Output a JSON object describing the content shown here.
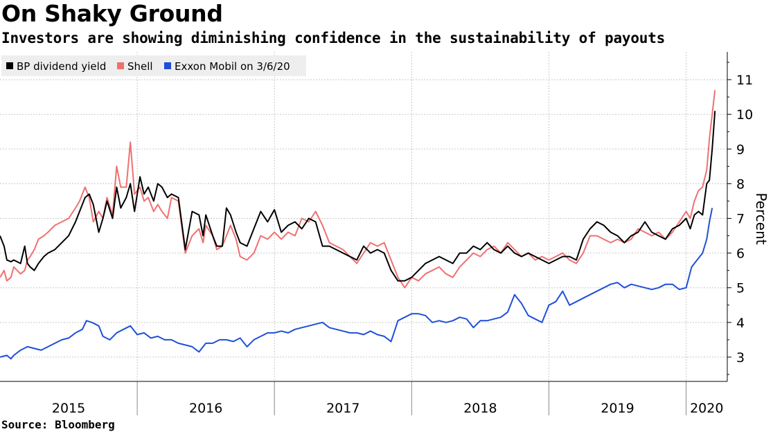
{
  "title": "On Shaky Ground",
  "subtitle": "Investors are showing diminishing confidence in the sustainability of payouts",
  "source": "Source: Bloomberg",
  "chart_data": {
    "type": "line",
    "title": "On Shaky Ground",
    "subtitle": "Investors are showing diminishing confidence in the sustainability of payouts",
    "ylabel": "Percent",
    "xlabel": "",
    "ylim": [
      2.3,
      11.8
    ],
    "xlim": [
      2015.0,
      2020.3
    ],
    "yticks": [
      3,
      4,
      5,
      6,
      7,
      8,
      9,
      10,
      11
    ],
    "year_labels": [
      "2015",
      "2016",
      "2017",
      "2018",
      "2019",
      "2020"
    ],
    "year_boundaries": [
      2016.0,
      2017.0,
      2018.0,
      2019.0,
      2020.0
    ],
    "legend_position": "top-left",
    "grid": true,
    "series": [
      {
        "name": "BP dividend yield",
        "color": "#000000",
        "x": [
          2015.0,
          2015.03,
          2015.05,
          2015.08,
          2015.1,
          2015.15,
          2015.18,
          2015.2,
          2015.22,
          2015.25,
          2015.28,
          2015.32,
          2015.35,
          2015.4,
          2015.45,
          2015.5,
          2015.55,
          2015.58,
          2015.62,
          2015.65,
          2015.68,
          2015.72,
          2015.75,
          2015.78,
          2015.82,
          2015.85,
          2015.88,
          2015.92,
          2015.95,
          2015.98,
          2016.02,
          2016.05,
          2016.08,
          2016.12,
          2016.15,
          2016.18,
          2016.22,
          2016.25,
          2016.3,
          2016.35,
          2016.4,
          2016.45,
          2016.48,
          2016.5,
          2016.55,
          2016.58,
          2016.62,
          2016.65,
          2016.68,
          2016.72,
          2016.75,
          2016.8,
          2016.85,
          2016.9,
          2016.95,
          2017.0,
          2017.05,
          2017.1,
          2017.15,
          2017.2,
          2017.25,
          2017.3,
          2017.35,
          2017.4,
          2017.45,
          2017.5,
          2017.55,
          2017.6,
          2017.65,
          2017.7,
          2017.75,
          2017.8,
          2017.85,
          2017.9,
          2017.95,
          2018.0,
          2018.05,
          2018.1,
          2018.15,
          2018.2,
          2018.25,
          2018.3,
          2018.35,
          2018.4,
          2018.45,
          2018.5,
          2018.55,
          2018.6,
          2018.65,
          2018.7,
          2018.75,
          2018.8,
          2018.85,
          2018.9,
          2018.95,
          2019.0,
          2019.05,
          2019.1,
          2019.15,
          2019.2,
          2019.25,
          2019.3,
          2019.35,
          2019.4,
          2019.45,
          2019.5,
          2019.55,
          2019.6,
          2019.65,
          2019.7,
          2019.75,
          2019.8,
          2019.85,
          2019.9,
          2019.95,
          2020.0,
          2020.03,
          2020.06,
          2020.09,
          2020.12,
          2020.15,
          2020.17,
          2020.19,
          2020.21
        ],
        "values": [
          6.5,
          6.2,
          5.8,
          5.75,
          5.8,
          5.7,
          6.2,
          5.7,
          5.6,
          5.5,
          5.7,
          5.9,
          6.0,
          6.1,
          6.3,
          6.5,
          6.9,
          7.2,
          7.6,
          7.7,
          7.4,
          6.6,
          7.0,
          7.5,
          7.0,
          7.9,
          7.3,
          7.6,
          8.0,
          7.2,
          8.2,
          7.7,
          7.9,
          7.5,
          8.0,
          7.9,
          7.6,
          7.7,
          7.6,
          6.1,
          7.2,
          7.1,
          6.5,
          7.1,
          6.5,
          6.2,
          6.2,
          7.3,
          7.1,
          6.6,
          6.3,
          6.2,
          6.7,
          7.2,
          6.9,
          7.25,
          6.6,
          6.8,
          6.9,
          6.7,
          7.0,
          6.9,
          6.2,
          6.2,
          6.1,
          6.0,
          5.9,
          5.8,
          6.2,
          6.0,
          6.1,
          6.0,
          5.5,
          5.2,
          5.2,
          5.3,
          5.5,
          5.7,
          5.8,
          5.9,
          5.8,
          5.7,
          6.0,
          6.0,
          6.2,
          6.1,
          6.3,
          6.1,
          6.0,
          6.2,
          6.0,
          5.9,
          6.0,
          5.9,
          5.8,
          5.7,
          5.8,
          5.9,
          5.9,
          5.8,
          6.4,
          6.7,
          6.9,
          6.8,
          6.6,
          6.5,
          6.3,
          6.5,
          6.6,
          6.9,
          6.6,
          6.5,
          6.4,
          6.7,
          6.8,
          7.0,
          6.7,
          7.1,
          7.2,
          7.1,
          8.0,
          8.1,
          9.0,
          10.1
        ]
      },
      {
        "name": "Shell",
        "color": "#f07070",
        "x": [
          2015.0,
          2015.03,
          2015.05,
          2015.08,
          2015.1,
          2015.15,
          2015.18,
          2015.2,
          2015.22,
          2015.25,
          2015.28,
          2015.32,
          2015.35,
          2015.4,
          2015.45,
          2015.5,
          2015.55,
          2015.58,
          2015.62,
          2015.65,
          2015.68,
          2015.72,
          2015.75,
          2015.78,
          2015.82,
          2015.85,
          2015.88,
          2015.92,
          2015.95,
          2015.98,
          2016.02,
          2016.05,
          2016.08,
          2016.12,
          2016.15,
          2016.18,
          2016.22,
          2016.25,
          2016.3,
          2016.35,
          2016.4,
          2016.45,
          2016.48,
          2016.5,
          2016.55,
          2016.58,
          2016.62,
          2016.65,
          2016.68,
          2016.72,
          2016.75,
          2016.8,
          2016.85,
          2016.9,
          2016.95,
          2017.0,
          2017.05,
          2017.1,
          2017.15,
          2017.2,
          2017.25,
          2017.3,
          2017.35,
          2017.4,
          2017.45,
          2017.5,
          2017.55,
          2017.6,
          2017.65,
          2017.7,
          2017.75,
          2017.8,
          2017.85,
          2017.9,
          2017.95,
          2018.0,
          2018.05,
          2018.1,
          2018.15,
          2018.2,
          2018.25,
          2018.3,
          2018.35,
          2018.4,
          2018.45,
          2018.5,
          2018.55,
          2018.6,
          2018.65,
          2018.7,
          2018.75,
          2018.8,
          2018.85,
          2018.9,
          2018.95,
          2019.0,
          2019.05,
          2019.1,
          2019.15,
          2019.2,
          2019.25,
          2019.3,
          2019.35,
          2019.4,
          2019.45,
          2019.5,
          2019.55,
          2019.6,
          2019.65,
          2019.7,
          2019.75,
          2019.8,
          2019.85,
          2019.9,
          2019.95,
          2020.0,
          2020.03,
          2020.06,
          2020.09,
          2020.12,
          2020.15,
          2020.17,
          2020.19,
          2020.21
        ],
        "values": [
          5.3,
          5.5,
          5.2,
          5.3,
          5.6,
          5.4,
          5.5,
          5.8,
          5.9,
          6.1,
          6.4,
          6.5,
          6.6,
          6.8,
          6.9,
          7.0,
          7.3,
          7.5,
          7.9,
          7.6,
          6.9,
          7.2,
          7.0,
          7.6,
          7.1,
          8.5,
          7.9,
          7.9,
          9.2,
          7.7,
          7.9,
          7.5,
          7.6,
          7.2,
          7.4,
          7.2,
          7.0,
          7.6,
          7.5,
          6.0,
          6.5,
          6.7,
          6.3,
          6.8,
          6.5,
          6.1,
          6.2,
          6.5,
          6.8,
          6.4,
          5.9,
          5.8,
          6.0,
          6.5,
          6.4,
          6.6,
          6.4,
          6.6,
          6.5,
          7.0,
          6.9,
          7.2,
          6.8,
          6.3,
          6.2,
          6.1,
          5.9,
          5.7,
          6.0,
          6.3,
          6.2,
          6.3,
          5.8,
          5.3,
          5.0,
          5.3,
          5.2,
          5.4,
          5.5,
          5.6,
          5.4,
          5.3,
          5.6,
          5.8,
          6.0,
          5.9,
          6.1,
          6.2,
          6.0,
          6.3,
          6.1,
          5.9,
          6.0,
          5.8,
          5.9,
          5.8,
          5.9,
          6.0,
          5.8,
          5.7,
          6.0,
          6.5,
          6.5,
          6.4,
          6.3,
          6.4,
          6.3,
          6.4,
          6.7,
          6.6,
          6.5,
          6.6,
          6.4,
          6.6,
          6.9,
          7.2,
          7.0,
          7.5,
          7.8,
          7.9,
          8.4,
          9.3,
          10.0,
          10.7
        ]
      },
      {
        "name": "Exxon Mobil on 3/6/20",
        "color": "#1f4fd8",
        "x": [
          2015.0,
          2015.05,
          2015.08,
          2015.1,
          2015.15,
          2015.2,
          2015.25,
          2015.3,
          2015.35,
          2015.4,
          2015.45,
          2015.5,
          2015.55,
          2015.6,
          2015.63,
          2015.67,
          2015.72,
          2015.75,
          2015.8,
          2015.85,
          2015.9,
          2015.95,
          2016.0,
          2016.05,
          2016.1,
          2016.15,
          2016.2,
          2016.25,
          2016.3,
          2016.35,
          2016.4,
          2016.45,
          2016.5,
          2016.55,
          2016.6,
          2016.65,
          2016.7,
          2016.75,
          2016.8,
          2016.85,
          2016.9,
          2016.95,
          2017.0,
          2017.05,
          2017.1,
          2017.15,
          2017.2,
          2017.25,
          2017.3,
          2017.35,
          2017.4,
          2017.45,
          2017.5,
          2017.55,
          2017.6,
          2017.65,
          2017.7,
          2017.75,
          2017.8,
          2017.85,
          2017.9,
          2017.95,
          2018.0,
          2018.05,
          2018.1,
          2018.15,
          2018.2,
          2018.25,
          2018.3,
          2018.35,
          2018.4,
          2018.45,
          2018.5,
          2018.55,
          2018.6,
          2018.65,
          2018.7,
          2018.75,
          2018.8,
          2018.85,
          2018.9,
          2018.95,
          2019.0,
          2019.05,
          2019.1,
          2019.15,
          2019.2,
          2019.25,
          2019.3,
          2019.35,
          2019.4,
          2019.45,
          2019.5,
          2019.55,
          2019.6,
          2019.65,
          2019.7,
          2019.75,
          2019.8,
          2019.85,
          2019.9,
          2019.95,
          2020.0,
          2020.04,
          2020.08,
          2020.12,
          2020.15,
          2020.17,
          2020.19
        ],
        "values": [
          3.0,
          3.05,
          2.95,
          3.05,
          3.2,
          3.3,
          3.25,
          3.2,
          3.3,
          3.4,
          3.5,
          3.55,
          3.7,
          3.8,
          4.05,
          4.0,
          3.9,
          3.6,
          3.5,
          3.7,
          3.8,
          3.9,
          3.65,
          3.7,
          3.55,
          3.6,
          3.5,
          3.5,
          3.4,
          3.35,
          3.3,
          3.15,
          3.4,
          3.4,
          3.5,
          3.5,
          3.45,
          3.55,
          3.3,
          3.5,
          3.6,
          3.7,
          3.7,
          3.75,
          3.7,
          3.8,
          3.85,
          3.9,
          3.95,
          4.0,
          3.85,
          3.8,
          3.75,
          3.7,
          3.7,
          3.65,
          3.75,
          3.65,
          3.6,
          3.45,
          4.05,
          4.15,
          4.25,
          4.25,
          4.2,
          4.0,
          4.05,
          4.0,
          4.05,
          4.15,
          4.1,
          3.85,
          4.05,
          4.05,
          4.1,
          4.15,
          4.3,
          4.8,
          4.55,
          4.2,
          4.1,
          4.0,
          4.5,
          4.6,
          4.9,
          4.5,
          4.6,
          4.7,
          4.8,
          4.9,
          5.0,
          5.1,
          5.15,
          5.0,
          5.1,
          5.05,
          5.0,
          4.95,
          5.0,
          5.1,
          5.1,
          4.95,
          5.0,
          5.6,
          5.8,
          6.0,
          6.4,
          6.9,
          7.3
        ]
      }
    ]
  }
}
